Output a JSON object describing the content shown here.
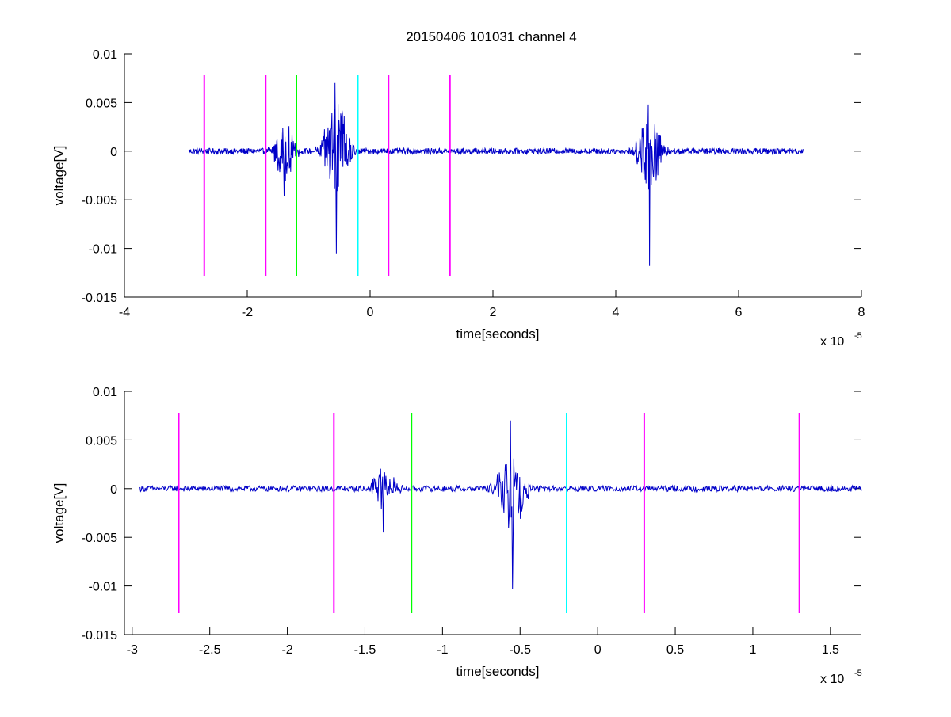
{
  "title": "20150406 101031 channel 4",
  "colors": {
    "signal": "#0000c8",
    "magenta": "#ff00ff",
    "green": "#00ff00",
    "cyan": "#00ffff",
    "axes": "#000000"
  },
  "chart_data": [
    {
      "type": "line",
      "title": "20150406 101031 channel 4",
      "xlabel": "time[seconds]",
      "ylabel": "voltage[V]",
      "x_multiplier_label": "x 10",
      "x_multiplier_exponent": "-5",
      "xlim": [
        -4,
        8
      ],
      "ylim": [
        -0.015,
        0.01
      ],
      "x_ticks": [
        -4,
        -2,
        0,
        2,
        4,
        6,
        8
      ],
      "x_tick_labels": [
        "-4",
        "-2",
        "0",
        "2",
        "4",
        "6",
        "8"
      ],
      "y_ticks": [
        -0.015,
        -0.01,
        -0.005,
        0,
        0.005,
        0.01
      ],
      "y_tick_labels": [
        "-0.015",
        "-0.01",
        "-0.005",
        "0",
        "0.005",
        "0.01"
      ],
      "grid": false,
      "series": [
        {
          "color": "signal",
          "x_start": -2.95,
          "x_end": 7.05,
          "noise_amplitude": 0.0003,
          "bursts": [
            {
              "center": -1.4,
              "width": 0.25,
              "amplitude": 0.003,
              "peak_min": -0.0046
            },
            {
              "center": -0.55,
              "width": 0.3,
              "amplitude": 0.0055,
              "peak_min": -0.0105,
              "peak_max": 0.007
            },
            {
              "center": 4.55,
              "width": 0.3,
              "amplitude": 0.004,
              "peak_min": -0.0118,
              "peak_max": 0.0048
            }
          ]
        }
      ],
      "markers": [
        {
          "x": -2.7,
          "color": "magenta",
          "y_top": 0.0078,
          "y_bottom": -0.0128
        },
        {
          "x": -1.7,
          "color": "magenta",
          "y_top": 0.0078,
          "y_bottom": -0.0128
        },
        {
          "x": -1.2,
          "color": "green",
          "y_top": 0.0078,
          "y_bottom": -0.0128
        },
        {
          "x": -0.2,
          "color": "cyan",
          "y_top": 0.0078,
          "y_bottom": -0.0128
        },
        {
          "x": 0.3,
          "color": "magenta",
          "y_top": 0.0078,
          "y_bottom": -0.0128
        },
        {
          "x": 1.3,
          "color": "magenta",
          "y_top": 0.0078,
          "y_bottom": -0.0128
        }
      ]
    },
    {
      "type": "line",
      "title": "",
      "xlabel": "time[seconds]",
      "ylabel": "voltage[V]",
      "x_multiplier_label": "x 10",
      "x_multiplier_exponent": "-5",
      "xlim": [
        -3.05,
        1.7
      ],
      "ylim": [
        -0.015,
        0.01
      ],
      "x_ticks": [
        -3,
        -2.5,
        -2,
        -1.5,
        -1,
        -0.5,
        0,
        0.5,
        1,
        1.5
      ],
      "x_tick_labels": [
        "-3",
        "-2.5",
        "-2",
        "-1.5",
        "-1",
        "-0.5",
        "0",
        "0.5",
        "1",
        "1.5"
      ],
      "y_ticks": [
        -0.015,
        -0.01,
        -0.005,
        0,
        0.005,
        0.01
      ],
      "y_tick_labels": [
        "-0.015",
        "-0.01",
        "-0.005",
        "0",
        "0.005",
        "0.01"
      ],
      "grid": false,
      "series": [
        {
          "color": "signal",
          "x_start": -2.95,
          "x_end": 1.7,
          "noise_amplitude": 0.0003,
          "bursts": [
            {
              "center": -1.38,
              "width": 0.12,
              "amplitude": 0.0022,
              "peak_min": -0.0045
            },
            {
              "center": -0.55,
              "width": 0.15,
              "amplitude": 0.0045,
              "peak_min": -0.0103,
              "peak_max": 0.007
            }
          ]
        }
      ],
      "markers": [
        {
          "x": -2.7,
          "color": "magenta",
          "y_top": 0.0078,
          "y_bottom": -0.0128
        },
        {
          "x": -1.7,
          "color": "magenta",
          "y_top": 0.0078,
          "y_bottom": -0.0128
        },
        {
          "x": -1.2,
          "color": "green",
          "y_top": 0.0078,
          "y_bottom": -0.0128
        },
        {
          "x": -0.2,
          "color": "cyan",
          "y_top": 0.0078,
          "y_bottom": -0.0128
        },
        {
          "x": 0.3,
          "color": "magenta",
          "y_top": 0.0078,
          "y_bottom": -0.0128
        },
        {
          "x": 1.3,
          "color": "magenta",
          "y_top": 0.0078,
          "y_bottom": -0.0128
        }
      ]
    }
  ]
}
